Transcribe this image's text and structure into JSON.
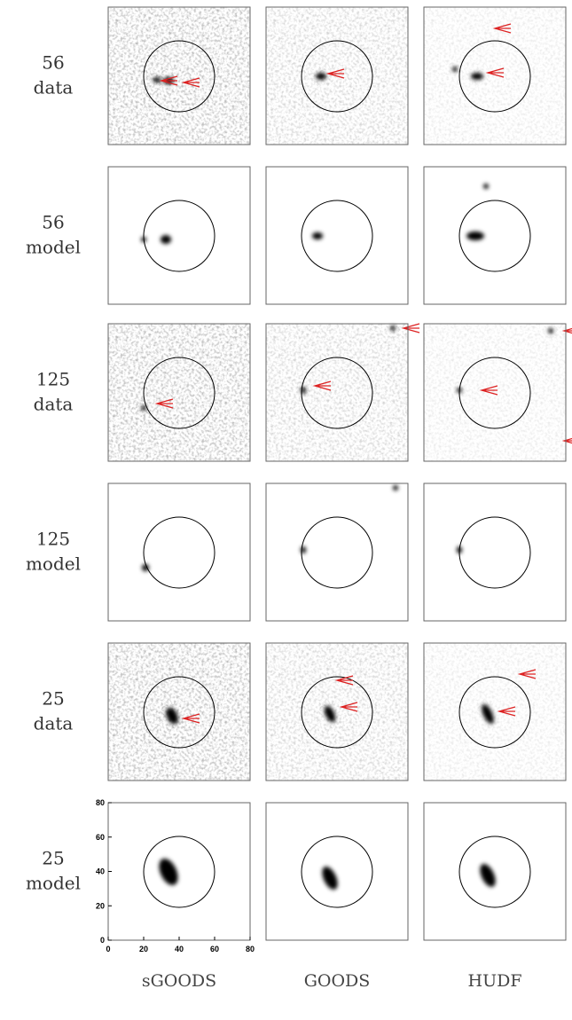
{
  "rows": [
    {
      "id": "56",
      "kind": "data"
    },
    {
      "id": "56",
      "kind": "model"
    },
    {
      "id": "125",
      "kind": "data"
    },
    {
      "id": "125",
      "kind": "model"
    },
    {
      "id": "25",
      "kind": "data"
    },
    {
      "id": "25",
      "kind": "model"
    }
  ],
  "columns": [
    "sGOODS",
    "GOODS",
    "HUDF"
  ],
  "axes": {
    "xticks": [
      0,
      20,
      40,
      60,
      80
    ],
    "yticks": [
      0,
      20,
      40,
      60,
      80
    ]
  }
}
